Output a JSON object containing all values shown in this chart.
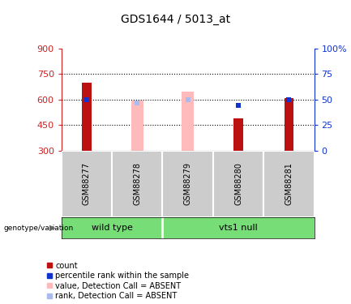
{
  "title": "GDS1644 / 5013_at",
  "samples": [
    "GSM88277",
    "GSM88278",
    "GSM88279",
    "GSM88280",
    "GSM88281"
  ],
  "ylim_left": [
    300,
    900
  ],
  "ylim_right": [
    0,
    100
  ],
  "yticks_left": [
    300,
    450,
    600,
    750,
    900
  ],
  "yticks_right": [
    0,
    25,
    50,
    75,
    100
  ],
  "count_values": [
    700,
    null,
    null,
    490,
    610
  ],
  "count_color": "#bb1111",
  "absent_value_values": [
    null,
    592,
    648,
    null,
    null
  ],
  "absent_value_color": "#ffbbbb",
  "rank_values": [
    50,
    null,
    null,
    44,
    50
  ],
  "rank_color": "#1133cc",
  "absent_rank_values": [
    null,
    47,
    50,
    null,
    null
  ],
  "absent_rank_color": "#aabbee",
  "bar_width": 0.18,
  "absent_bar_width": 0.25,
  "group_labels": [
    "wild type",
    "vts1 null"
  ],
  "group_color": "#77dd77",
  "label_area_color": "#cccccc",
  "left_axis_color": "#cc2222",
  "right_axis_color": "#1133cc",
  "grid_color": "#000000",
  "background_color": "#ffffff",
  "title_fontsize": 10,
  "tick_fontsize": 8,
  "sample_fontsize": 7,
  "group_fontsize": 8,
  "legend_fontsize": 7
}
